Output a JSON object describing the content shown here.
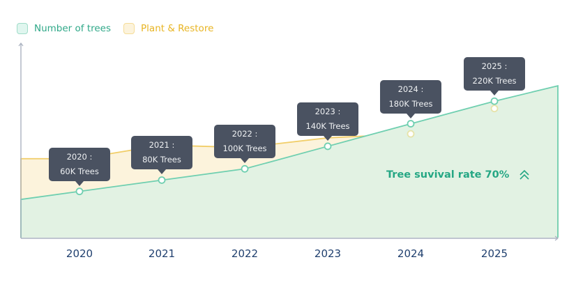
{
  "chart_data": {
    "type": "area",
    "categories": [
      "2020",
      "2021",
      "2022",
      "2023",
      "2024",
      "2025"
    ],
    "series": [
      {
        "name": "Number of trees",
        "values": [
          60,
          80,
          100,
          140,
          180,
          220
        ],
        "color": "#6fcfb0",
        "fill": "#e2f2e3"
      },
      {
        "name": "Plant & Restore",
        "values": [
          118,
          142,
          138,
          155,
          162,
          207
        ],
        "color": "#f0c95a",
        "fill": "#fcf3dc"
      }
    ],
    "tooltips": [
      {
        "year": "2020 :",
        "value": "60K Trees"
      },
      {
        "year": "2021 :",
        "value": "80K Trees"
      },
      {
        "year": "2022 :",
        "value": "100K Trees"
      },
      {
        "year": "2023 :",
        "value": "140K Trees"
      },
      {
        "year": "2024 :",
        "value": "180K Trees"
      },
      {
        "year": "2025 :",
        "value": "220K Trees"
      }
    ],
    "ylim": [
      -22,
      245
    ],
    "grid": false,
    "legend_position": "top-left",
    "annotation": "Tree suvival rate 70%",
    "annotation_icon": "double-chevron-up-icon"
  }
}
